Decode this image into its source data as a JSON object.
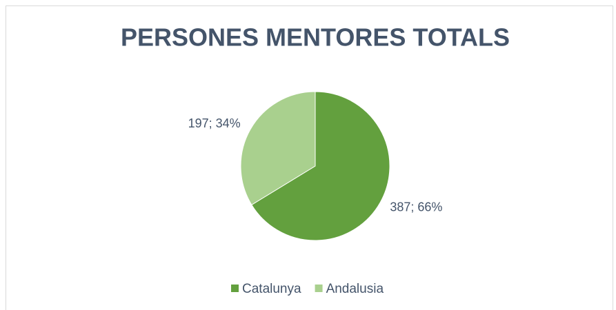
{
  "chart_data": {
    "type": "pie",
    "title": "PERSONES MENTORES TOTALS",
    "categories": [
      "Catalunya",
      "Andalusia"
    ],
    "values": [
      387,
      197
    ],
    "value_labels": [
      "387; 66%",
      "197; 34%"
    ],
    "colors": [
      "#63a03e",
      "#a9d08e"
    ],
    "legend": "bottom"
  }
}
